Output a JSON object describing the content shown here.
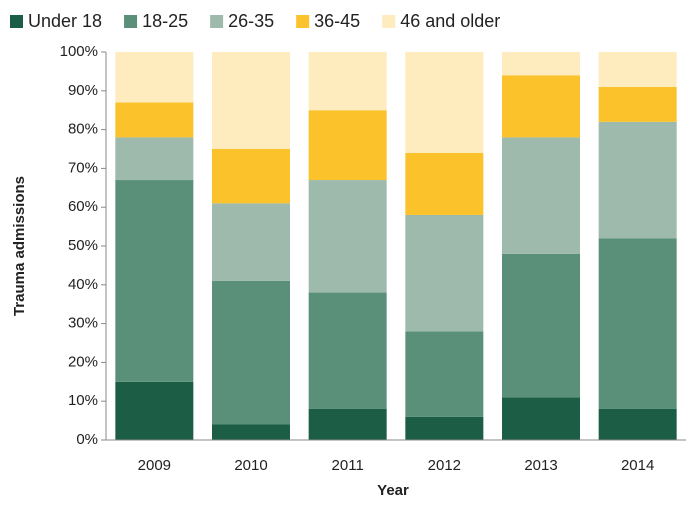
{
  "chart_data": {
    "type": "stacked_bar",
    "x_label": "Year",
    "y_label": "Trauma admissions",
    "categories": [
      "2009",
      "2010",
      "2011",
      "2012",
      "2013",
      "2014"
    ],
    "series": [
      {
        "name": "Under 18",
        "color": "#1b5e45",
        "values": [
          15,
          4,
          8,
          6,
          11,
          8
        ]
      },
      {
        "name": "18-25",
        "color": "#5a9079",
        "values": [
          52,
          37,
          30,
          22,
          37,
          44
        ]
      },
      {
        "name": "26-35",
        "color": "#9dbaac",
        "values": [
          11,
          20,
          29,
          30,
          30,
          30
        ]
      },
      {
        "name": "36-45",
        "color": "#fbc22c",
        "values": [
          9,
          14,
          18,
          16,
          16,
          9
        ]
      },
      {
        "name": "46 and older",
        "color": "#feecbe",
        "values": [
          13,
          25,
          15,
          26,
          6,
          9
        ]
      }
    ],
    "ylim": [
      0,
      100
    ],
    "yticks": [
      {
        "value": 0,
        "label": "0%"
      },
      {
        "value": 10,
        "label": "10%"
      },
      {
        "value": 20,
        "label": "20%"
      },
      {
        "value": 30,
        "label": "30%"
      },
      {
        "value": 40,
        "label": "40%"
      },
      {
        "value": 50,
        "label": "50%"
      },
      {
        "value": 60,
        "label": "60%"
      },
      {
        "value": 70,
        "label": "70%"
      },
      {
        "value": 80,
        "label": "80%"
      },
      {
        "value": 90,
        "label": "90%"
      },
      {
        "value": 100,
        "label": "100%"
      }
    ],
    "legend": "top",
    "grid": false
  }
}
